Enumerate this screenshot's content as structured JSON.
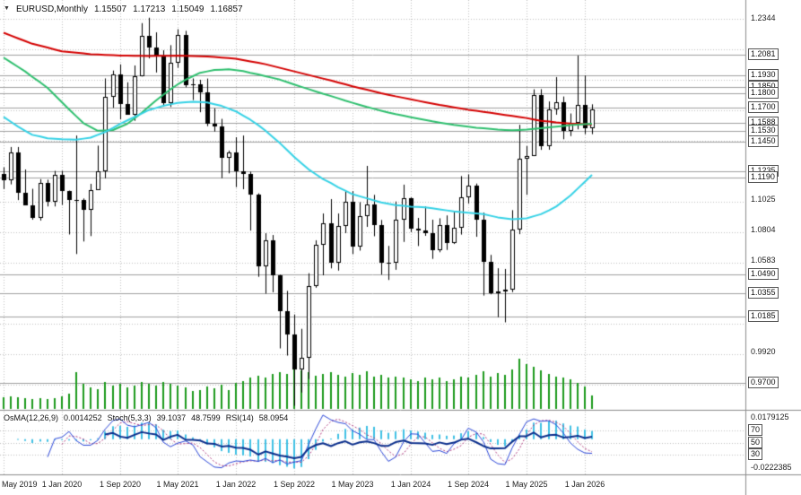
{
  "header": {
    "symbol": "EURUSD,Monthly",
    "open": "1.15507",
    "high": "1.17213",
    "low": "1.15049",
    "close": "1.16857"
  },
  "price_axis": {
    "ticks": [
      {
        "label": "1.2344",
        "price": 1.2344
      },
      {
        "label": "1.1025",
        "price": 1.1025
      },
      {
        "label": "1.0804",
        "price": 1.0804
      },
      {
        "label": "1.0583",
        "price": 1.0583
      },
      {
        "label": "0.9920",
        "price": 0.992
      }
    ],
    "levels": [
      {
        "label": "1.2081",
        "price": 1.2081
      },
      {
        "label": "1.1930",
        "price": 1.193
      },
      {
        "label": "1.1850",
        "price": 1.185
      },
      {
        "label": "1.1800",
        "price": 1.18
      },
      {
        "label": "1.1700",
        "price": 1.17
      },
      {
        "label": "1.1588",
        "price": 1.1588
      },
      {
        "label": "1.1530",
        "price": 1.153
      },
      {
        "label": "1.1450",
        "price": 1.145
      },
      {
        "label": "1.1235",
        "price": 1.1235
      },
      {
        "label": "1.1190",
        "price": 1.119
      },
      {
        "label": "1.0490",
        "price": 1.049
      },
      {
        "label": "1.0355",
        "price": 1.0355
      },
      {
        "label": "1.0185",
        "price": 1.0185
      },
      {
        "label": "0.9700",
        "price": 0.97
      }
    ],
    "gridline_prices": [
      1.2344,
      1.2123,
      1.1902,
      1.1681,
      1.146,
      1.1239,
      1.1018,
      1.0797,
      1.0576,
      1.0355,
      1.0134,
      0.9913,
      0.9692
    ]
  },
  "time_axis": {
    "labels": [
      {
        "text": "May 2019",
        "index": 0,
        "align": "left"
      },
      {
        "text": "1 Jan 2020",
        "index": 8
      },
      {
        "text": "1 Sep 2020",
        "index": 16
      },
      {
        "text": "1 May 2021",
        "index": 24
      },
      {
        "text": "1 Jan 2022",
        "index": 32
      },
      {
        "text": "1 Sep 2022",
        "index": 40
      },
      {
        "text": "1 May 2023",
        "index": 48
      },
      {
        "text": "1 Jan 2024",
        "index": 56
      },
      {
        "text": "1 Sep 2024",
        "index": 64
      },
      {
        "text": "1 May 2025",
        "index": 72
      },
      {
        "text": "1 Jan 2026",
        "index": 80
      }
    ]
  },
  "indicator_panel": {
    "header": [
      {
        "name": "OsMA(12,26,9)",
        "values": [
          "0.0014252"
        ]
      },
      {
        "name": "Stoch(5,3,3)",
        "values": [
          "39.1037",
          "48.7599"
        ]
      },
      {
        "name": "RSI(14)",
        "values": [
          "58.0954"
        ]
      }
    ],
    "scale_max": "0.0179125",
    "scale_min": "-0.0222385",
    "levels": [
      "70",
      "50",
      "30"
    ]
  },
  "chart_data": {
    "type": "candlestick",
    "title": "EURUSD,Monthly",
    "symbol": "EURUSD",
    "timeframe": "Monthly",
    "visible_price_range": [
      0.95135,
      1.24775
    ],
    "last_bar": {
      "open": 1.15507,
      "high": 1.17213,
      "low": 1.15049,
      "close": 1.16857
    },
    "candles": [
      [
        1.1215,
        1.1265,
        1.1107,
        1.1168
      ],
      [
        1.1168,
        1.1412,
        1.1141,
        1.1373
      ],
      [
        1.1373,
        1.1412,
        1.1027,
        1.1078
      ],
      [
        1.1078,
        1.1249,
        1.1027,
        1.0989
      ],
      [
        1.0989,
        1.1109,
        1.0885,
        1.0899
      ],
      [
        1.0899,
        1.1179,
        1.0879,
        1.1152
      ],
      [
        1.1152,
        1.1175,
        1.0981,
        1.1018
      ],
      [
        1.1018,
        1.1239,
        1.0981,
        1.1213
      ],
      [
        1.1213,
        1.1239,
        1.0992,
        1.1093
      ],
      [
        1.1093,
        1.1096,
        1.0778,
        1.1026
      ],
      [
        1.1026,
        1.1495,
        1.0636,
        1.1031
      ],
      [
        1.1031,
        1.1039,
        1.0727,
        1.0955
      ],
      [
        1.0955,
        1.1145,
        1.0766,
        1.1101
      ],
      [
        1.1101,
        1.1422,
        1.1101,
        1.1234
      ],
      [
        1.1234,
        1.1909,
        1.1185,
        1.1778
      ],
      [
        1.1778,
        1.1966,
        1.1696,
        1.1935
      ],
      [
        1.1935,
        1.2011,
        1.1612,
        1.1721
      ],
      [
        1.1721,
        1.1881,
        1.165,
        1.1647
      ],
      [
        1.1647,
        1.2003,
        1.1602,
        1.1926
      ],
      [
        1.1926,
        1.231,
        1.1923,
        1.2216
      ],
      [
        1.2216,
        1.2349,
        1.2054,
        1.2136
      ],
      [
        1.2136,
        1.2243,
        1.1952,
        1.2075
      ],
      [
        1.2075,
        1.2113,
        1.1704,
        1.1729
      ],
      [
        1.1729,
        1.215,
        1.1702,
        1.202
      ],
      [
        1.202,
        1.2266,
        1.1986,
        1.2226
      ],
      [
        1.2226,
        1.2254,
        1.1845,
        1.1858
      ],
      [
        1.1858,
        1.1909,
        1.1752,
        1.1869
      ],
      [
        1.1869,
        1.1899,
        1.1664,
        1.1809
      ],
      [
        1.1809,
        1.1908,
        1.1563,
        1.1579
      ],
      [
        1.1579,
        1.1692,
        1.1524,
        1.1558
      ],
      [
        1.1558,
        1.1616,
        1.1186,
        1.1336
      ],
      [
        1.1336,
        1.1386,
        1.1221,
        1.137
      ],
      [
        1.137,
        1.1483,
        1.1121,
        1.1234
      ],
      [
        1.1234,
        1.1495,
        1.1106,
        1.1216
      ],
      [
        1.1216,
        1.1233,
        1.0806,
        1.1067
      ],
      [
        1.1067,
        1.1076,
        1.0471,
        1.0545
      ],
      [
        1.0545,
        1.0787,
        1.0349,
        1.0734
      ],
      [
        1.0734,
        1.0774,
        1.0359,
        1.0484
      ],
      [
        1.0484,
        1.0486,
        0.9952,
        1.0219
      ],
      [
        1.0219,
        1.0369,
        0.99,
        1.0054
      ],
      [
        1.0054,
        1.0198,
        0.9536,
        0.9802
      ],
      [
        0.9802,
        1.0094,
        0.9632,
        0.9881
      ],
      [
        0.9881,
        1.0497,
        0.973,
        1.0407
      ],
      [
        1.0407,
        1.0736,
        1.0392,
        1.0705
      ],
      [
        1.0705,
        1.093,
        1.0482,
        1.0862
      ],
      [
        1.0862,
        1.1034,
        1.0532,
        1.0576
      ],
      [
        1.0576,
        1.093,
        1.0516,
        1.0839
      ],
      [
        1.0839,
        1.1096,
        1.0788,
        1.1018
      ],
      [
        1.1018,
        1.1092,
        1.0635,
        1.0687
      ],
      [
        1.0687,
        1.1012,
        1.0661,
        1.0909
      ],
      [
        1.0909,
        1.1275,
        1.0833,
        1.0998
      ],
      [
        1.0998,
        1.1065,
        1.0765,
        1.0843
      ],
      [
        1.0843,
        1.0883,
        1.0487,
        1.0573
      ],
      [
        1.0573,
        1.0695,
        1.0448,
        1.0575
      ],
      [
        1.0575,
        1.1017,
        1.0522,
        1.0888
      ],
      [
        1.0888,
        1.1139,
        1.0724,
        1.1038
      ],
      [
        1.1038,
        1.1046,
        1.0795,
        1.0818
      ],
      [
        1.0818,
        1.0898,
        1.0694,
        1.0805
      ],
      [
        1.0805,
        1.0981,
        1.0768,
        1.079
      ],
      [
        1.079,
        1.0885,
        1.0601,
        1.0666
      ],
      [
        1.0666,
        1.0895,
        1.0649,
        1.0848
      ],
      [
        1.0848,
        1.0916,
        1.0666,
        1.0713
      ],
      [
        1.0713,
        1.0948,
        1.0709,
        1.0826
      ],
      [
        1.0826,
        1.1201,
        1.0777,
        1.1048
      ],
      [
        1.1048,
        1.1214,
        1.1002,
        1.1135
      ],
      [
        1.1135,
        1.1147,
        1.0761,
        1.0884
      ],
      [
        1.0884,
        1.0937,
        1.0335,
        1.0577
      ],
      [
        1.0577,
        1.063,
        1.0344,
        1.0354
      ],
      [
        1.0354,
        1.0533,
        1.0178,
        1.0362
      ],
      [
        1.0362,
        1.0528,
        1.0141,
        1.0375
      ],
      [
        1.0375,
        1.0954,
        1.036,
        1.0816
      ],
      [
        1.0816,
        1.1573,
        1.078,
        1.1328
      ],
      [
        1.1328,
        1.1419,
        1.1065,
        1.1347
      ],
      [
        1.1347,
        1.183,
        1.1346,
        1.1787
      ],
      [
        1.1787,
        1.1831,
        1.1391,
        1.1415
      ],
      [
        1.1415,
        1.1742,
        1.1392,
        1.1686
      ],
      [
        1.1686,
        1.1919,
        1.1646,
        1.1734
      ],
      [
        1.1734,
        1.1778,
        1.1468,
        1.1527
      ],
      [
        1.1527,
        1.1655,
        1.1491,
        1.159
      ],
      [
        1.159,
        1.2075,
        1.154,
        1.172
      ],
      [
        1.172,
        1.193,
        1.1505,
        1.1551
      ],
      [
        1.15507,
        1.17213,
        1.15049,
        1.16857
      ]
    ],
    "volumes": [
      14,
      15,
      14,
      13,
      12,
      13,
      12,
      13,
      15,
      18,
      44,
      30,
      26,
      24,
      32,
      28,
      30,
      26,
      28,
      32,
      30,
      28,
      32,
      30,
      28,
      26,
      21,
      23,
      27,
      25,
      29,
      23,
      31,
      33,
      37,
      40,
      38,
      42,
      44,
      42,
      48,
      46,
      44,
      40,
      42,
      44,
      41,
      39,
      43,
      41,
      45,
      39,
      41,
      37,
      39,
      37,
      35,
      33,
      37,
      35,
      37,
      33,
      35,
      39,
      37,
      41,
      45,
      39,
      43,
      41,
      47,
      60,
      54,
      50,
      46,
      42,
      39,
      37,
      35,
      31,
      27,
      16
    ],
    "overlays": [
      {
        "name": "ma-slow-red",
        "color": "#d40000",
        "width": 2,
        "points": [
          [
            0,
            1.224
          ],
          [
            4,
            1.216
          ],
          [
            8,
            1.2105
          ],
          [
            12,
            1.2085
          ],
          [
            16,
            1.2075
          ],
          [
            20,
            1.2072
          ],
          [
            24,
            1.2074
          ],
          [
            28,
            1.2068
          ],
          [
            32,
            1.2052
          ],
          [
            36,
            1.2012
          ],
          [
            40,
            1.196
          ],
          [
            44,
            1.1908
          ],
          [
            48,
            1.1852
          ],
          [
            52,
            1.1802
          ],
          [
            56,
            1.1757
          ],
          [
            60,
            1.1717
          ],
          [
            64,
            1.1682
          ],
          [
            68,
            1.1652
          ],
          [
            72,
            1.1622
          ],
          [
            74,
            1.1602
          ],
          [
            76,
            1.159
          ],
          [
            78,
            1.1582
          ],
          [
            81,
            1.1576
          ]
        ]
      },
      {
        "name": "ma-medium-green",
        "color": "#2ebf6e",
        "width": 2,
        "points": [
          [
            0,
            1.206
          ],
          [
            3,
            1.196
          ],
          [
            6,
            1.184
          ],
          [
            9,
            1.1685
          ],
          [
            11,
            1.1585
          ],
          [
            13,
            1.153
          ],
          [
            15,
            1.1535
          ],
          [
            17,
            1.158
          ],
          [
            19,
            1.166
          ],
          [
            21,
            1.175
          ],
          [
            23,
            1.183
          ],
          [
            25,
            1.19
          ],
          [
            27,
            1.195
          ],
          [
            29,
            1.197
          ],
          [
            31,
            1.1975
          ],
          [
            33,
            1.1962
          ],
          [
            35,
            1.1938
          ],
          [
            38,
            1.19
          ],
          [
            41,
            1.1848
          ],
          [
            44,
            1.1798
          ],
          [
            47,
            1.1748
          ],
          [
            50,
            1.1702
          ],
          [
            53,
            1.1662
          ],
          [
            56,
            1.1628
          ],
          [
            59,
            1.1598
          ],
          [
            62,
            1.1572
          ],
          [
            65,
            1.1552
          ],
          [
            68,
            1.1538
          ],
          [
            70,
            1.1533
          ],
          [
            72,
            1.1538
          ],
          [
            74,
            1.1548
          ],
          [
            76,
            1.156
          ],
          [
            78,
            1.157
          ],
          [
            81,
            1.158
          ]
        ]
      },
      {
        "name": "ma-fast-cyan",
        "color": "#35d2e6",
        "width": 2,
        "points": [
          [
            0,
            1.163
          ],
          [
            2,
            1.156
          ],
          [
            4,
            1.15
          ],
          [
            6,
            1.1475
          ],
          [
            8,
            1.1468
          ],
          [
            10,
            1.1465
          ],
          [
            12,
            1.148
          ],
          [
            14,
            1.152
          ],
          [
            16,
            1.158
          ],
          [
            18,
            1.163
          ],
          [
            20,
            1.168
          ],
          [
            22,
            1.171
          ],
          [
            24,
            1.1732
          ],
          [
            26,
            1.174
          ],
          [
            28,
            1.1735
          ],
          [
            30,
            1.171
          ],
          [
            32,
            1.167
          ],
          [
            34,
            1.161
          ],
          [
            36,
            1.153
          ],
          [
            38,
            1.144
          ],
          [
            40,
            1.134
          ],
          [
            42,
            1.125
          ],
          [
            44,
            1.118
          ],
          [
            46,
            1.112
          ],
          [
            48,
            1.107
          ],
          [
            50,
            1.104
          ],
          [
            52,
            1.101
          ],
          [
            54,
            1.099
          ],
          [
            56,
            1.098
          ],
          [
            58,
            1.0975
          ],
          [
            60,
            1.096
          ],
          [
            62,
            1.0945
          ],
          [
            64,
            1.0935
          ],
          [
            66,
            1.0925
          ],
          [
            68,
            1.0902
          ],
          [
            70,
            1.0888
          ],
          [
            72,
            1.0895
          ],
          [
            74,
            1.0925
          ],
          [
            76,
            1.098
          ],
          [
            78,
            1.106
          ],
          [
            80,
            1.116
          ],
          [
            81,
            1.121
          ]
        ]
      }
    ],
    "indicators": {
      "osma": {
        "params": [
          12,
          26,
          9
        ],
        "current": 0.0014252
      },
      "stoch": {
        "params": [
          5,
          3,
          3
        ],
        "main": 39.1037,
        "signal": 48.7599
      },
      "rsi": {
        "params": [
          14
        ],
        "current": 58.0954
      }
    },
    "style": {
      "bull": "#ffffff",
      "bear": "#000000",
      "outline": "#000000",
      "volume": "#1c9a1c",
      "grid": "#c0c0c0",
      "level_line": "#a0a0a0",
      "separator": "#8c8c8c",
      "osma_bar": "#3fc0e4",
      "stoch_main": "#2b47d9",
      "stoch_signal": "#b0387e",
      "rsi_line": "#0a2e8c"
    }
  }
}
